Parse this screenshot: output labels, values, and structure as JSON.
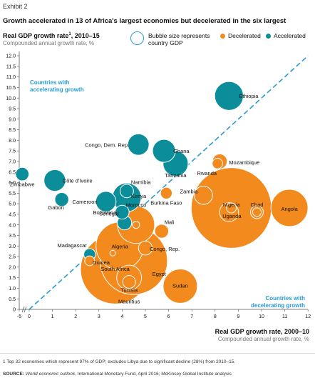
{
  "header": {
    "exhibit": "Exhibit 2",
    "title": "Growth accelerated in 13 of Africa's largest economies but decelerated in the six largest"
  },
  "legend": {
    "bubble_note": "Bubble size represents country GDP",
    "decelerated": "Decelerated",
    "accelerated": "Accelerated"
  },
  "axes": {
    "y_title": "Real GDP growth rate",
    "y_title_sup": "1",
    "y_title_suffix": ", 2010–15",
    "y_sub": "Compounded annual growth rate, %",
    "x_title": "Real GDP growth rate, 2000–10",
    "x_sub": "Compounded annual growth rate, %"
  },
  "notes": {
    "footnote": "1 Top 32 economies which represent 97% of GDP; excludes Libya due to significant decline (28%) from 2010–15.",
    "source_label": "SOURCE:",
    "source_italic": "World economic outlook",
    "source_rest": ", International Monetary Fund, April 2016; McKinsey Global Institute analysis"
  },
  "chart_data": {
    "type": "scatter",
    "title": "Growth accelerated in 13 of Africa's largest economies but decelerated in the six largest",
    "xlabel": "Real GDP growth rate, 2000–10",
    "ylabel": "Real GDP growth rate, 2010–15",
    "xlim": [
      -5,
      12
    ],
    "ylim": [
      0,
      12
    ],
    "x_ticks": [
      "-5",
      "0",
      "1",
      "2",
      "3",
      "4",
      "5",
      "6",
      "7",
      "8",
      "9",
      "10",
      "11",
      "12"
    ],
    "y_ticks": [
      "0",
      "0.5",
      "1.0",
      "1.5",
      "2.0",
      "2.5",
      "3.0",
      "3.5",
      "4.0",
      "4.5",
      "5.0",
      "5.5",
      "6.0",
      "6.5",
      "7.0",
      "7.5",
      "8.0",
      "8.5",
      "9.0",
      "9.5",
      "10.0",
      "10.5",
      "11.0",
      "11.5",
      "12.0"
    ],
    "reference_line": "x = y",
    "annotations": {
      "upper": "Countries with accelerating growth",
      "lower": "Countries with decelerating growth"
    },
    "colors": {
      "accelerated": "#0b8e9a",
      "decelerated": "#f28a1e",
      "reference": "#2b9bd0"
    },
    "points": [
      {
        "name": "Ethiopia",
        "x": 8.6,
        "y": 10.1,
        "gdp": 60,
        "status": "accelerated"
      },
      {
        "name": "Congo, Dem. Rep.",
        "x": 4.7,
        "y": 7.8,
        "gdp": 33,
        "status": "accelerated"
      },
      {
        "name": "Ghana",
        "x": 5.8,
        "y": 7.5,
        "gdp": 38,
        "status": "accelerated"
      },
      {
        "name": "Tanzania",
        "x": 6.3,
        "y": 6.9,
        "gdp": 46,
        "status": "accelerated"
      },
      {
        "name": "Côte d'Ivoire",
        "x": 1.1,
        "y": 6.1,
        "gdp": 34,
        "status": "accelerated"
      },
      {
        "name": "Zimbabwe",
        "x": -0.3,
        "y": 6.4,
        "gdp": 13,
        "status": "accelerated"
      },
      {
        "name": "Gabon",
        "x": 1.4,
        "y": 5.2,
        "gdp": 14,
        "status": "accelerated"
      },
      {
        "name": "Cameroon",
        "x": 3.3,
        "y": 5.1,
        "gdp": 30,
        "status": "accelerated"
      },
      {
        "name": "Namibia",
        "x": 4.2,
        "y": 5.6,
        "gdp": 13,
        "status": "accelerated"
      },
      {
        "name": "Kenya",
        "x": 4.2,
        "y": 5.3,
        "gdp": 60,
        "status": "accelerated"
      },
      {
        "name": "Botswana",
        "x": 4.0,
        "y": 4.6,
        "gdp": 14,
        "status": "accelerated"
      },
      {
        "name": "Senegal",
        "x": 4.1,
        "y": 4.1,
        "gdp": 15,
        "status": "accelerated"
      },
      {
        "name": "Madagascar",
        "x": 2.6,
        "y": 2.6,
        "gdp": 10,
        "status": "accelerated"
      },
      {
        "name": "Mozambique",
        "x": 8.2,
        "y": 7.0,
        "gdp": 16,
        "status": "decelerated"
      },
      {
        "name": "Rwanda",
        "x": 8.1,
        "y": 6.9,
        "gdp": 8,
        "status": "decelerated"
      },
      {
        "name": "Zambia",
        "x": 7.5,
        "y": 5.4,
        "gdp": 24,
        "status": "decelerated"
      },
      {
        "name": "Burkina Faso",
        "x": 5.9,
        "y": 5.5,
        "gdp": 10,
        "status": "decelerated"
      },
      {
        "name": "Morocco",
        "x": 4.6,
        "y": 4.0,
        "gdp": 100,
        "status": "decelerated"
      },
      {
        "name": "Nigeria",
        "x": 8.7,
        "y": 4.8,
        "gdp": 470,
        "status": "decelerated"
      },
      {
        "name": "Uganda",
        "x": 8.6,
        "y": 4.6,
        "gdp": 26,
        "status": "decelerated"
      },
      {
        "name": "Chad",
        "x": 9.8,
        "y": 4.6,
        "gdp": 12,
        "status": "decelerated"
      },
      {
        "name": "Angola",
        "x": 11.2,
        "y": 4.8,
        "gdp": 100,
        "status": "decelerated"
      },
      {
        "name": "Mali",
        "x": 5.7,
        "y": 3.7,
        "gdp": 14,
        "status": "decelerated"
      },
      {
        "name": "Algeria",
        "x": 3.9,
        "y": 3.0,
        "gdp": 165,
        "status": "decelerated"
      },
      {
        "name": "Congo, Rep.",
        "x": 5.0,
        "y": 2.9,
        "gdp": 14,
        "status": "decelerated"
      },
      {
        "name": "Egypt",
        "x": 4.5,
        "y": 2.3,
        "gdp": 330,
        "status": "decelerated"
      },
      {
        "name": "South Africa",
        "x": 3.7,
        "y": 1.9,
        "gdp": 350,
        "status": "decelerated"
      },
      {
        "name": "Guinea",
        "x": 2.6,
        "y": 2.3,
        "gdp": 7,
        "status": "decelerated"
      },
      {
        "name": "Tunisia",
        "x": 4.3,
        "y": 1.5,
        "gdp": 45,
        "status": "decelerated"
      },
      {
        "name": "Mauritius",
        "x": 4.3,
        "y": 1.3,
        "gdp": 12,
        "status": "decelerated"
      },
      {
        "name": "Sudan",
        "x": 6.5,
        "y": 1.1,
        "gdp": 85,
        "status": "decelerated"
      }
    ]
  }
}
